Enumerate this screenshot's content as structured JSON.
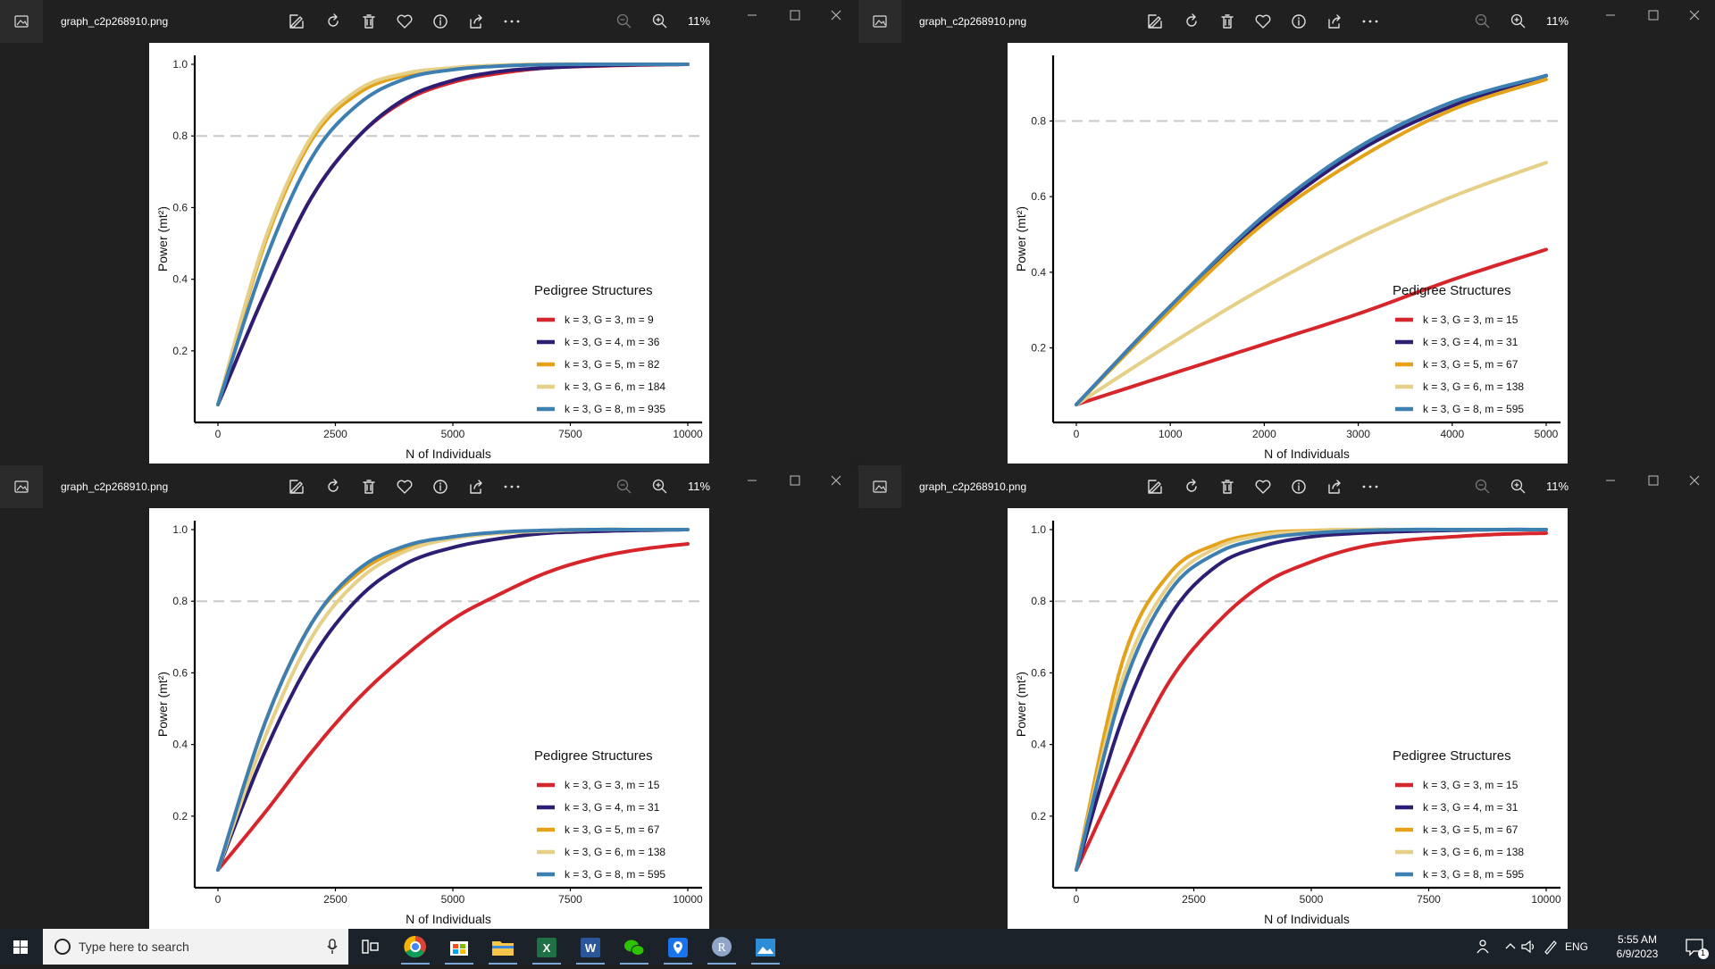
{
  "viewer": {
    "filename": "graph_c2p268910.png",
    "zoom": "11%"
  },
  "colors": {
    "red": "#d7262b",
    "navy": "#2d1e73",
    "orange": "#e3a21a",
    "beige": "#e6cf86",
    "blue": "#3d7fb0",
    "threshold": "#c8c8c8"
  },
  "charts": [
    {
      "id": "top-left",
      "title": "",
      "xlabel": "N of Individuals",
      "ylabel": "Power (mt²)",
      "xlim": [
        0,
        10000
      ],
      "ylim": [
        0.05,
        1.0
      ],
      "xticks": [
        "0",
        "2500",
        "5000",
        "7500",
        "10000"
      ],
      "xtick_values": [
        0,
        2500,
        5000,
        7500,
        10000
      ],
      "yticks": [
        "0.2",
        "0.4",
        "0.6",
        "0.8",
        "1.0"
      ],
      "ytick_values": [
        0.2,
        0.4,
        0.6,
        0.8,
        1.0
      ],
      "threshold": 0.8,
      "legend": {
        "title": "Pedigree Structures",
        "items": [
          "k = 3, G = 3, m = 9",
          "k = 3, G = 4, m = 36",
          "k = 3, G = 5, m = 82",
          "k = 3, G = 6, m = 184",
          "k = 3, G = 8, m = 935"
        ]
      }
    },
    {
      "id": "top-right",
      "title": "",
      "xlabel": "N of Individuals",
      "ylabel": "Power (mt²)",
      "xlim": [
        0,
        5000
      ],
      "ylim": [
        0.05,
        0.95
      ],
      "xticks": [
        "0",
        "1000",
        "2000",
        "3000",
        "4000",
        "5000"
      ],
      "xtick_values": [
        0,
        1000,
        2000,
        3000,
        4000,
        5000
      ],
      "yticks": [
        "0.2",
        "0.4",
        "0.6",
        "0.8"
      ],
      "ytick_values": [
        0.2,
        0.4,
        0.6,
        0.8
      ],
      "threshold": 0.8,
      "legend": {
        "title": "Pedigree Structures",
        "items": [
          "k = 3, G = 3, m = 15",
          "k = 3, G = 4, m = 31",
          "k = 3, G = 5, m = 67",
          "k = 3, G = 6, m = 138",
          "k = 3, G = 8, m = 595"
        ]
      }
    },
    {
      "id": "bottom-left",
      "title": "",
      "xlabel": "N of Individuals",
      "ylabel": "Power (mt²)",
      "xlim": [
        0,
        10000
      ],
      "ylim": [
        0.05,
        1.0
      ],
      "xticks": [
        "0",
        "2500",
        "5000",
        "7500",
        "10000"
      ],
      "xtick_values": [
        0,
        2500,
        5000,
        7500,
        10000
      ],
      "yticks": [
        "0.2",
        "0.4",
        "0.6",
        "0.8",
        "1.0"
      ],
      "ytick_values": [
        0.2,
        0.4,
        0.6,
        0.8,
        1.0
      ],
      "threshold": 0.8,
      "legend": {
        "title": "Pedigree Structures",
        "items": [
          "k = 3, G = 3, m = 15",
          "k = 3, G = 4, m = 31",
          "k = 3, G = 5, m = 67",
          "k = 3, G = 6, m = 138",
          "k = 3, G = 8, m = 595"
        ]
      }
    },
    {
      "id": "bottom-right",
      "title": "",
      "xlabel": "N of Individuals",
      "ylabel": "Power (mt²)",
      "xlim": [
        0,
        10000
      ],
      "ylim": [
        0.05,
        1.0
      ],
      "xticks": [
        "0",
        "2500",
        "5000",
        "7500",
        "10000"
      ],
      "xtick_values": [
        0,
        2500,
        5000,
        7500,
        10000
      ],
      "yticks": [
        "0.2",
        "0.4",
        "0.6",
        "0.8",
        "1.0"
      ],
      "ytick_values": [
        0.2,
        0.4,
        0.6,
        0.8,
        1.0
      ],
      "threshold": 0.8,
      "legend": {
        "title": "Pedigree Structures",
        "items": [
          "k = 3, G = 3, m = 15",
          "k = 3, G = 4, m = 31",
          "k = 3, G = 5, m = 67",
          "k = 3, G = 6, m = 138",
          "k = 3, G = 8, m = 595"
        ]
      }
    }
  ],
  "chart_data": [
    {
      "type": "line",
      "title": "",
      "xlabel": "N of Individuals",
      "ylabel": "Power (mt²)",
      "xlim": [
        0,
        10000
      ],
      "ylim": [
        0.05,
        1.0
      ],
      "x": [
        0,
        1000,
        2000,
        3000,
        4000,
        5000,
        6000,
        7000,
        8000,
        9000,
        10000
      ],
      "series": [
        {
          "name": "k = 3, G = 3, m = 9",
          "color": "red",
          "values": [
            0.05,
            0.36,
            0.63,
            0.8,
            0.9,
            0.95,
            0.975,
            0.99,
            0.995,
            0.998,
            1.0
          ]
        },
        {
          "name": "k = 3, G = 4, m = 36",
          "color": "navy",
          "values": [
            0.05,
            0.36,
            0.63,
            0.8,
            0.905,
            0.955,
            0.98,
            0.99,
            0.996,
            0.999,
            1.0
          ]
        },
        {
          "name": "k = 3, G = 5, m = 82",
          "color": "orange",
          "values": [
            0.05,
            0.5,
            0.79,
            0.92,
            0.97,
            0.99,
            0.997,
            1.0,
            1.0,
            1.0,
            1.0
          ]
        },
        {
          "name": "k = 3, G = 6, m = 184",
          "color": "beige",
          "values": [
            0.05,
            0.51,
            0.8,
            0.93,
            0.975,
            0.99,
            0.997,
            1.0,
            1.0,
            1.0,
            1.0
          ]
        },
        {
          "name": "k = 3, G = 8, m = 935",
          "color": "blue",
          "values": [
            0.05,
            0.45,
            0.74,
            0.89,
            0.96,
            0.985,
            0.995,
            0.999,
            1.0,
            1.0,
            1.0
          ]
        }
      ]
    },
    {
      "type": "line",
      "title": "",
      "xlabel": "N of Individuals",
      "ylabel": "Power (mt²)",
      "xlim": [
        0,
        5000
      ],
      "ylim": [
        0.05,
        0.95
      ],
      "x": [
        0,
        1000,
        2000,
        3000,
        4000,
        5000
      ],
      "series": [
        {
          "name": "k = 3, G = 3, m = 15",
          "color": "red",
          "values": [
            0.05,
            0.13,
            0.21,
            0.29,
            0.38,
            0.46
          ]
        },
        {
          "name": "k = 3, G = 4, m = 31",
          "color": "navy",
          "values": [
            0.05,
            0.31,
            0.54,
            0.72,
            0.84,
            0.92
          ]
        },
        {
          "name": "k = 3, G = 5, m = 67",
          "color": "orange",
          "values": [
            0.05,
            0.3,
            0.53,
            0.7,
            0.83,
            0.91
          ]
        },
        {
          "name": "k = 3, G = 6, m = 138",
          "color": "beige",
          "values": [
            0.05,
            0.21,
            0.36,
            0.49,
            0.6,
            0.69
          ]
        },
        {
          "name": "k = 3, G = 8, m = 595",
          "color": "blue",
          "values": [
            0.05,
            0.31,
            0.55,
            0.73,
            0.85,
            0.92
          ]
        }
      ]
    },
    {
      "type": "line",
      "title": "",
      "xlabel": "N of Individuals",
      "ylabel": "Power (mt²)",
      "xlim": [
        0,
        10000
      ],
      "ylim": [
        0.05,
        1.0
      ],
      "x": [
        0,
        1000,
        2000,
        3000,
        4000,
        5000,
        6000,
        7000,
        8000,
        9000,
        10000
      ],
      "series": [
        {
          "name": "k = 3, G = 3, m = 15",
          "color": "red",
          "values": [
            0.05,
            0.21,
            0.38,
            0.53,
            0.65,
            0.75,
            0.82,
            0.88,
            0.92,
            0.945,
            0.96
          ]
        },
        {
          "name": "k = 3, G = 4, m = 31",
          "color": "navy",
          "values": [
            0.05,
            0.38,
            0.64,
            0.81,
            0.905,
            0.95,
            0.975,
            0.99,
            0.995,
            0.998,
            1.0
          ]
        },
        {
          "name": "k = 3, G = 5, m = 67",
          "color": "orange",
          "values": [
            0.05,
            0.46,
            0.74,
            0.88,
            0.95,
            0.98,
            0.99,
            0.997,
            1.0,
            1.0,
            1.0
          ]
        },
        {
          "name": "k = 3, G = 6, m = 138",
          "color": "beige",
          "values": [
            0.05,
            0.42,
            0.7,
            0.86,
            0.94,
            0.975,
            0.99,
            0.996,
            1.0,
            1.0,
            1.0
          ]
        },
        {
          "name": "k = 3, G = 8, m = 595",
          "color": "blue",
          "values": [
            0.05,
            0.46,
            0.74,
            0.89,
            0.955,
            0.98,
            0.993,
            0.998,
            1.0,
            1.0,
            1.0
          ]
        }
      ]
    },
    {
      "type": "line",
      "title": "",
      "xlabel": "N of Individuals",
      "ylabel": "Power (mt²)",
      "xlim": [
        0,
        10000
      ],
      "ylim": [
        0.05,
        1.0
      ],
      "x": [
        0,
        1000,
        2000,
        3000,
        4000,
        5000,
        6000,
        7000,
        8000,
        9000,
        10000
      ],
      "series": [
        {
          "name": "k = 3, G = 3, m = 15",
          "color": "red",
          "values": [
            0.05,
            0.33,
            0.58,
            0.74,
            0.85,
            0.91,
            0.95,
            0.97,
            0.98,
            0.987,
            0.99
          ]
        },
        {
          "name": "k = 3, G = 4, m = 31",
          "color": "navy",
          "values": [
            0.05,
            0.48,
            0.76,
            0.9,
            0.955,
            0.98,
            0.99,
            0.995,
            0.998,
            1.0,
            1.0
          ]
        },
        {
          "name": "k = 3, G = 5, m = 67",
          "color": "orange",
          "values": [
            0.05,
            0.64,
            0.88,
            0.96,
            0.99,
            0.997,
            1.0,
            1.0,
            1.0,
            1.0,
            1.0
          ]
        },
        {
          "name": "k = 3, G = 6, m = 138",
          "color": "beige",
          "values": [
            0.05,
            0.59,
            0.85,
            0.95,
            0.985,
            0.995,
            1.0,
            1.0,
            1.0,
            1.0,
            1.0
          ]
        },
        {
          "name": "k = 3, G = 8, m = 595",
          "color": "blue",
          "values": [
            0.05,
            0.56,
            0.83,
            0.935,
            0.975,
            0.99,
            0.997,
            1.0,
            1.0,
            1.0,
            1.0
          ]
        }
      ]
    }
  ],
  "taskbar": {
    "search_placeholder": "Type here to search",
    "language": "ENG",
    "time": "5:55 AM",
    "date": "6/9/2023",
    "notification_count": "1",
    "apps": [
      "task-view",
      "chrome",
      "microsoft-store",
      "file-explorer",
      "excel",
      "word",
      "wechat",
      "maps",
      "r-app",
      "photos"
    ]
  }
}
